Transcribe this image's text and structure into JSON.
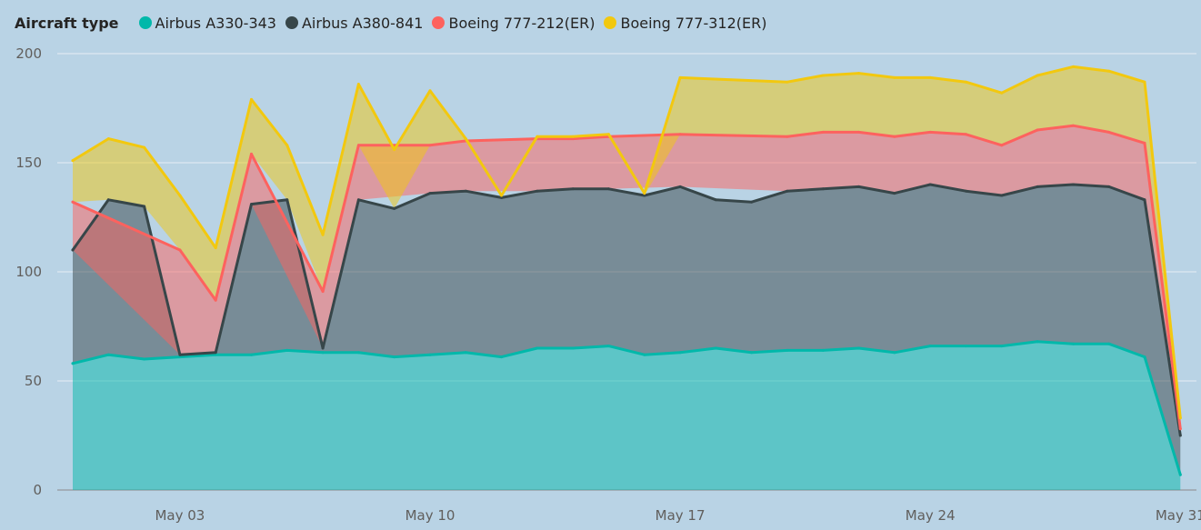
{
  "legend": {
    "title": "Aircraft type"
  },
  "colors": {
    "background": "#b9d3e5",
    "grid": "#e6eef5",
    "axis": "#8a8a8a"
  },
  "chart_data": {
    "type": "area",
    "stacked": true,
    "legend_position": "top-left",
    "grid": true,
    "x_start": "2022-04-30",
    "x": [
      "Apr 30",
      "May 01",
      "May 02",
      "May 03",
      "May 04",
      "May 05",
      "May 06",
      "May 07",
      "May 08",
      "May 09",
      "May 10",
      "May 11",
      "May 12",
      "May 13",
      "May 14",
      "May 15",
      "May 16",
      "May 17",
      "May 18",
      "May 19",
      "May 20",
      "May 21",
      "May 22",
      "May 23",
      "May 24",
      "May 25",
      "May 26",
      "May 27",
      "May 28",
      "May 29",
      "May 30",
      "May 31",
      "Jun 01"
    ],
    "x_tick_labels": [
      "May 03",
      "May 10",
      "May 17",
      "May 24",
      "May 31"
    ],
    "y_ticks": [
      0,
      50,
      100,
      150,
      200
    ],
    "ylim": [
      0,
      200
    ],
    "series": [
      {
        "name": "Airbus A330-343",
        "color": "#01b8aa",
        "values": [
          58,
          62,
          60,
          61,
          62,
          62,
          64,
          63,
          63,
          61,
          62,
          63,
          61,
          65,
          65,
          66,
          62,
          63,
          65,
          63,
          64,
          64,
          65,
          63,
          66,
          66,
          66,
          68,
          67,
          67,
          61,
          7,
          null
        ]
      },
      {
        "name": "Airbus A380-841",
        "color": "#374649",
        "values": [
          52,
          71,
          70,
          1,
          1,
          69,
          69,
          2,
          70,
          68,
          74,
          74,
          73,
          72,
          73,
          72,
          73,
          76,
          68,
          69,
          73,
          74,
          74,
          73,
          74,
          71,
          69,
          71,
          73,
          72,
          72,
          18,
          null
        ]
      },
      {
        "name": "Boeing 777-212(ER)",
        "color": "#fd625e",
        "values": [
          22,
          null,
          null,
          48,
          24,
          23,
          null,
          26,
          25,
          null,
          22,
          23,
          null,
          24,
          23,
          24,
          null,
          24,
          null,
          null,
          25,
          26,
          25,
          26,
          24,
          26,
          23,
          26,
          27,
          25,
          26,
          3,
          null
        ]
      },
      {
        "name": "Boeing 777-312(ER)",
        "color": "#f2c80f",
        "values": [
          19,
          28,
          27,
          25,
          24,
          25,
          25,
          26,
          28,
          27,
          25,
          1,
          1,
          1,
          1,
          1,
          1,
          26,
          null,
          null,
          25,
          26,
          27,
          27,
          25,
          24,
          24,
          25,
          27,
          28,
          28,
          5,
          null
        ]
      }
    ]
  }
}
